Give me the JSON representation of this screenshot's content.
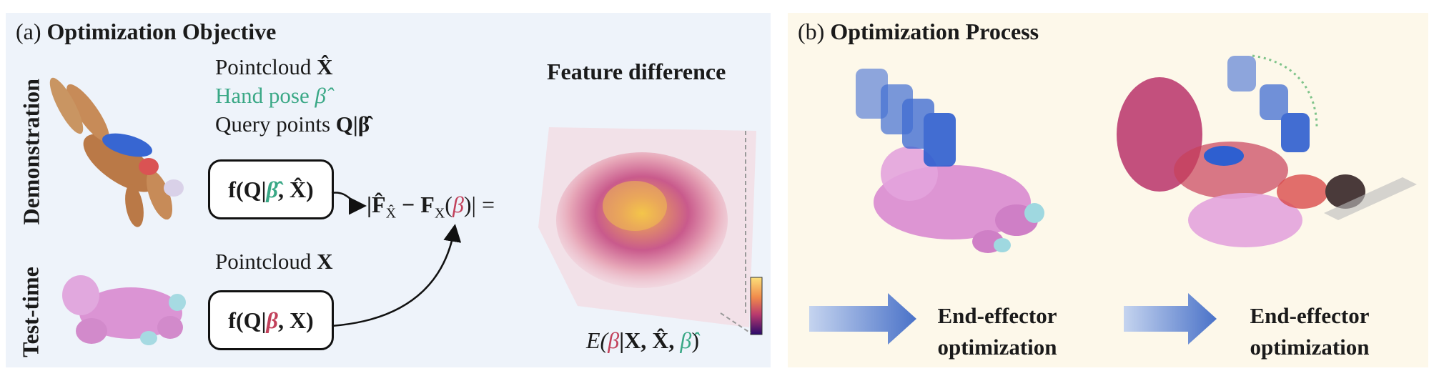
{
  "panel_a": {
    "label": "(a)",
    "title": "Optimization Objective",
    "row_demo": "Demonstration",
    "row_test": "Test-time",
    "demo_pointcloud": "Pointcloud",
    "demo_pointcloud_sym": "X̂",
    "hand_pose": "Hand pose",
    "hand_pose_sym": "β̂",
    "query_points": "Query points",
    "query_points_sym": "Q|β̂",
    "test_pointcloud": "Pointcloud",
    "test_pointcloud_sym": "X",
    "func_demo": {
      "f": "f(Q|",
      "beta": "β̂",
      "rest": ", X̂)"
    },
    "func_test": {
      "f": "f(Q|",
      "beta": "β",
      "rest": ", X)"
    },
    "diff_expr": {
      "pre": "|F̂",
      "sub1": "X̂",
      "mid": " − F",
      "sub2": "X",
      "paren_open": "(",
      "beta": "β",
      "post": ")| ="
    },
    "feature_title": "Feature difference",
    "energy": {
      "pre": "E(",
      "beta": "β",
      "mid": "|X, X̂, ",
      "beta_hat": "β̂",
      "post": ")"
    }
  },
  "panel_b": {
    "label": "(b)",
    "title": "Optimization Process",
    "step1": "End-effector optimization",
    "step2": "End-effector optimization"
  },
  "colors": {
    "panel_a_bg": "#eef3fa",
    "panel_b_bg": "#fdf8ea",
    "green": "#3aa886",
    "red": "#c2415b",
    "hand_blue": "#2e5fd0",
    "pink": "#d98ad0"
  }
}
